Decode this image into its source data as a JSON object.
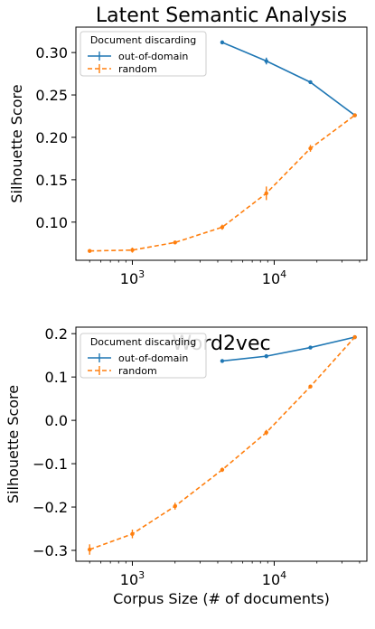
{
  "chart_data": [
    {
      "type": "line",
      "title": "Latent Semantic Analysis",
      "xlabel": "",
      "ylabel": "Silhouette Score",
      "xscale": "log",
      "xlim": [
        400,
        45000
      ],
      "ylim": [
        0.055,
        0.33
      ],
      "xticks": [
        1000,
        10000
      ],
      "xtick_labels": [
        {
          "base": "10",
          "exp": "3"
        },
        {
          "base": "10",
          "exp": "4"
        }
      ],
      "yticks": [
        0.1,
        0.15,
        0.2,
        0.25,
        0.3
      ],
      "ytick_labels": [
        "0.10",
        "0.15",
        "0.20",
        "0.25",
        "0.30"
      ],
      "grid": false,
      "legend": {
        "title": "Document discarding",
        "position": "top-left"
      },
      "series": [
        {
          "name": "out-of-domain",
          "color": "#1f77b4",
          "style": "solid",
          "x": [
            4300,
            8800,
            18000,
            37000
          ],
          "y": [
            0.312,
            0.29,
            0.265,
            0.226
          ],
          "err": [
            0.001,
            0.004,
            0.002,
            0.001
          ]
        },
        {
          "name": "random",
          "color": "#ff7f0e",
          "style": "dashed",
          "x": [
            500,
            1000,
            2000,
            4300,
            8800,
            18000,
            37000
          ],
          "y": [
            0.066,
            0.067,
            0.076,
            0.094,
            0.134,
            0.187,
            0.226
          ],
          "err": [
            0.002,
            0.003,
            0.002,
            0.003,
            0.008,
            0.004,
            0.001
          ]
        }
      ]
    },
    {
      "type": "line",
      "title": "Word2vec",
      "xlabel": "Corpus Size (# of documents)",
      "ylabel": "Silhouette Score",
      "xscale": "log",
      "xlim": [
        400,
        45000
      ],
      "ylim": [
        -0.325,
        0.215
      ],
      "xticks": [
        1000,
        10000
      ],
      "xtick_labels": [
        {
          "base": "10",
          "exp": "3"
        },
        {
          "base": "10",
          "exp": "4"
        }
      ],
      "yticks": [
        -0.3,
        -0.2,
        -0.1,
        0.0,
        0.1,
        0.2
      ],
      "ytick_labels": [
        "−0.3",
        "−0.2",
        "−0.1",
        "0.0",
        "0.1",
        "0.2"
      ],
      "grid": false,
      "legend": {
        "title": "Document discarding",
        "position": "top-left"
      },
      "series": [
        {
          "name": "out-of-domain",
          "color": "#1f77b4",
          "style": "solid",
          "x": [
            4300,
            8800,
            18000,
            37000
          ],
          "y": [
            0.137,
            0.148,
            0.168,
            0.192
          ],
          "err": [
            0.002,
            0.003,
            0.003,
            0.002
          ]
        },
        {
          "name": "random",
          "color": "#ff7f0e",
          "style": "dashed",
          "x": [
            500,
            1000,
            2000,
            4300,
            8800,
            18000,
            37000
          ],
          "y": [
            -0.298,
            -0.262,
            -0.198,
            -0.114,
            -0.028,
            0.078,
            0.192
          ],
          "err": [
            0.012,
            0.01,
            0.008,
            0.005,
            0.006,
            0.004,
            0.002
          ]
        }
      ]
    }
  ]
}
